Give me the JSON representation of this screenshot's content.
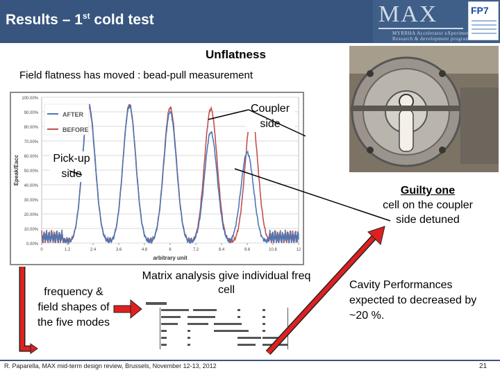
{
  "header": {
    "title_main": "Results – 1",
    "title_sup": "st",
    "title_rest": " cold test",
    "logo_text": "MAX",
    "logo_sub_1": "MYRRHA Accelerator eXperiment",
    "logo_sub_2": "Research & development programme",
    "fp7_text": "FP7",
    "colors": {
      "bar": "#37557e",
      "logo_panel": "#3f5e88"
    }
  },
  "slide": {
    "subtitle": "Unflatness",
    "intro": "Field flatness has moved : bead-pull measurement",
    "coupler_label": "Coupler side",
    "pickup_label": "Pick-up side",
    "guilty_bold": "Guilty one",
    "guilty_rest": "cell on the coupler side detuned",
    "freq_label": "frequency & field shapes of the five modes",
    "matrix_label": "Matrix analysis give individual freq cell",
    "cavity_label": "Cavity Performances expected to decreased by ~20 %."
  },
  "chart_data": {
    "type": "line",
    "ylabel": "Epeak/Eacc",
    "xlabel": "arbitrary unit",
    "y_ticks": [
      "100.00%",
      "90.00%",
      "80.00%",
      "70.00%",
      "60.00%",
      "50.00%",
      "40.00%",
      "30.00%",
      "20.00%",
      "10.00%",
      "0.00%"
    ],
    "ylim": [
      0,
      100
    ],
    "x_ticks": [
      "0",
      "1.2",
      "2.4",
      "3.6",
      "4.8",
      "6",
      "7.2",
      "8.4",
      "9.6",
      "10.8",
      "12"
    ],
    "xlim": [
      0,
      12
    ],
    "grid": true,
    "legend": "top-left",
    "series": [
      {
        "name": "AFTER",
        "color": "#4a78b8",
        "peaks": [
          [
            2.2,
            95
          ],
          [
            4.1,
            94
          ],
          [
            6.0,
            90
          ],
          [
            7.9,
            76
          ],
          [
            9.6,
            62
          ]
        ]
      },
      {
        "name": "BEFORE",
        "color": "#c0504d",
        "peaks": [
          [
            2.2,
            93
          ],
          [
            4.1,
            95
          ],
          [
            6.0,
            93
          ],
          [
            7.9,
            92
          ],
          [
            9.8,
            89
          ]
        ]
      }
    ]
  },
  "footer": {
    "left": "R. Paparella, MAX mid-term design review, Brussels, November 12-13, 2012",
    "page": "21"
  }
}
